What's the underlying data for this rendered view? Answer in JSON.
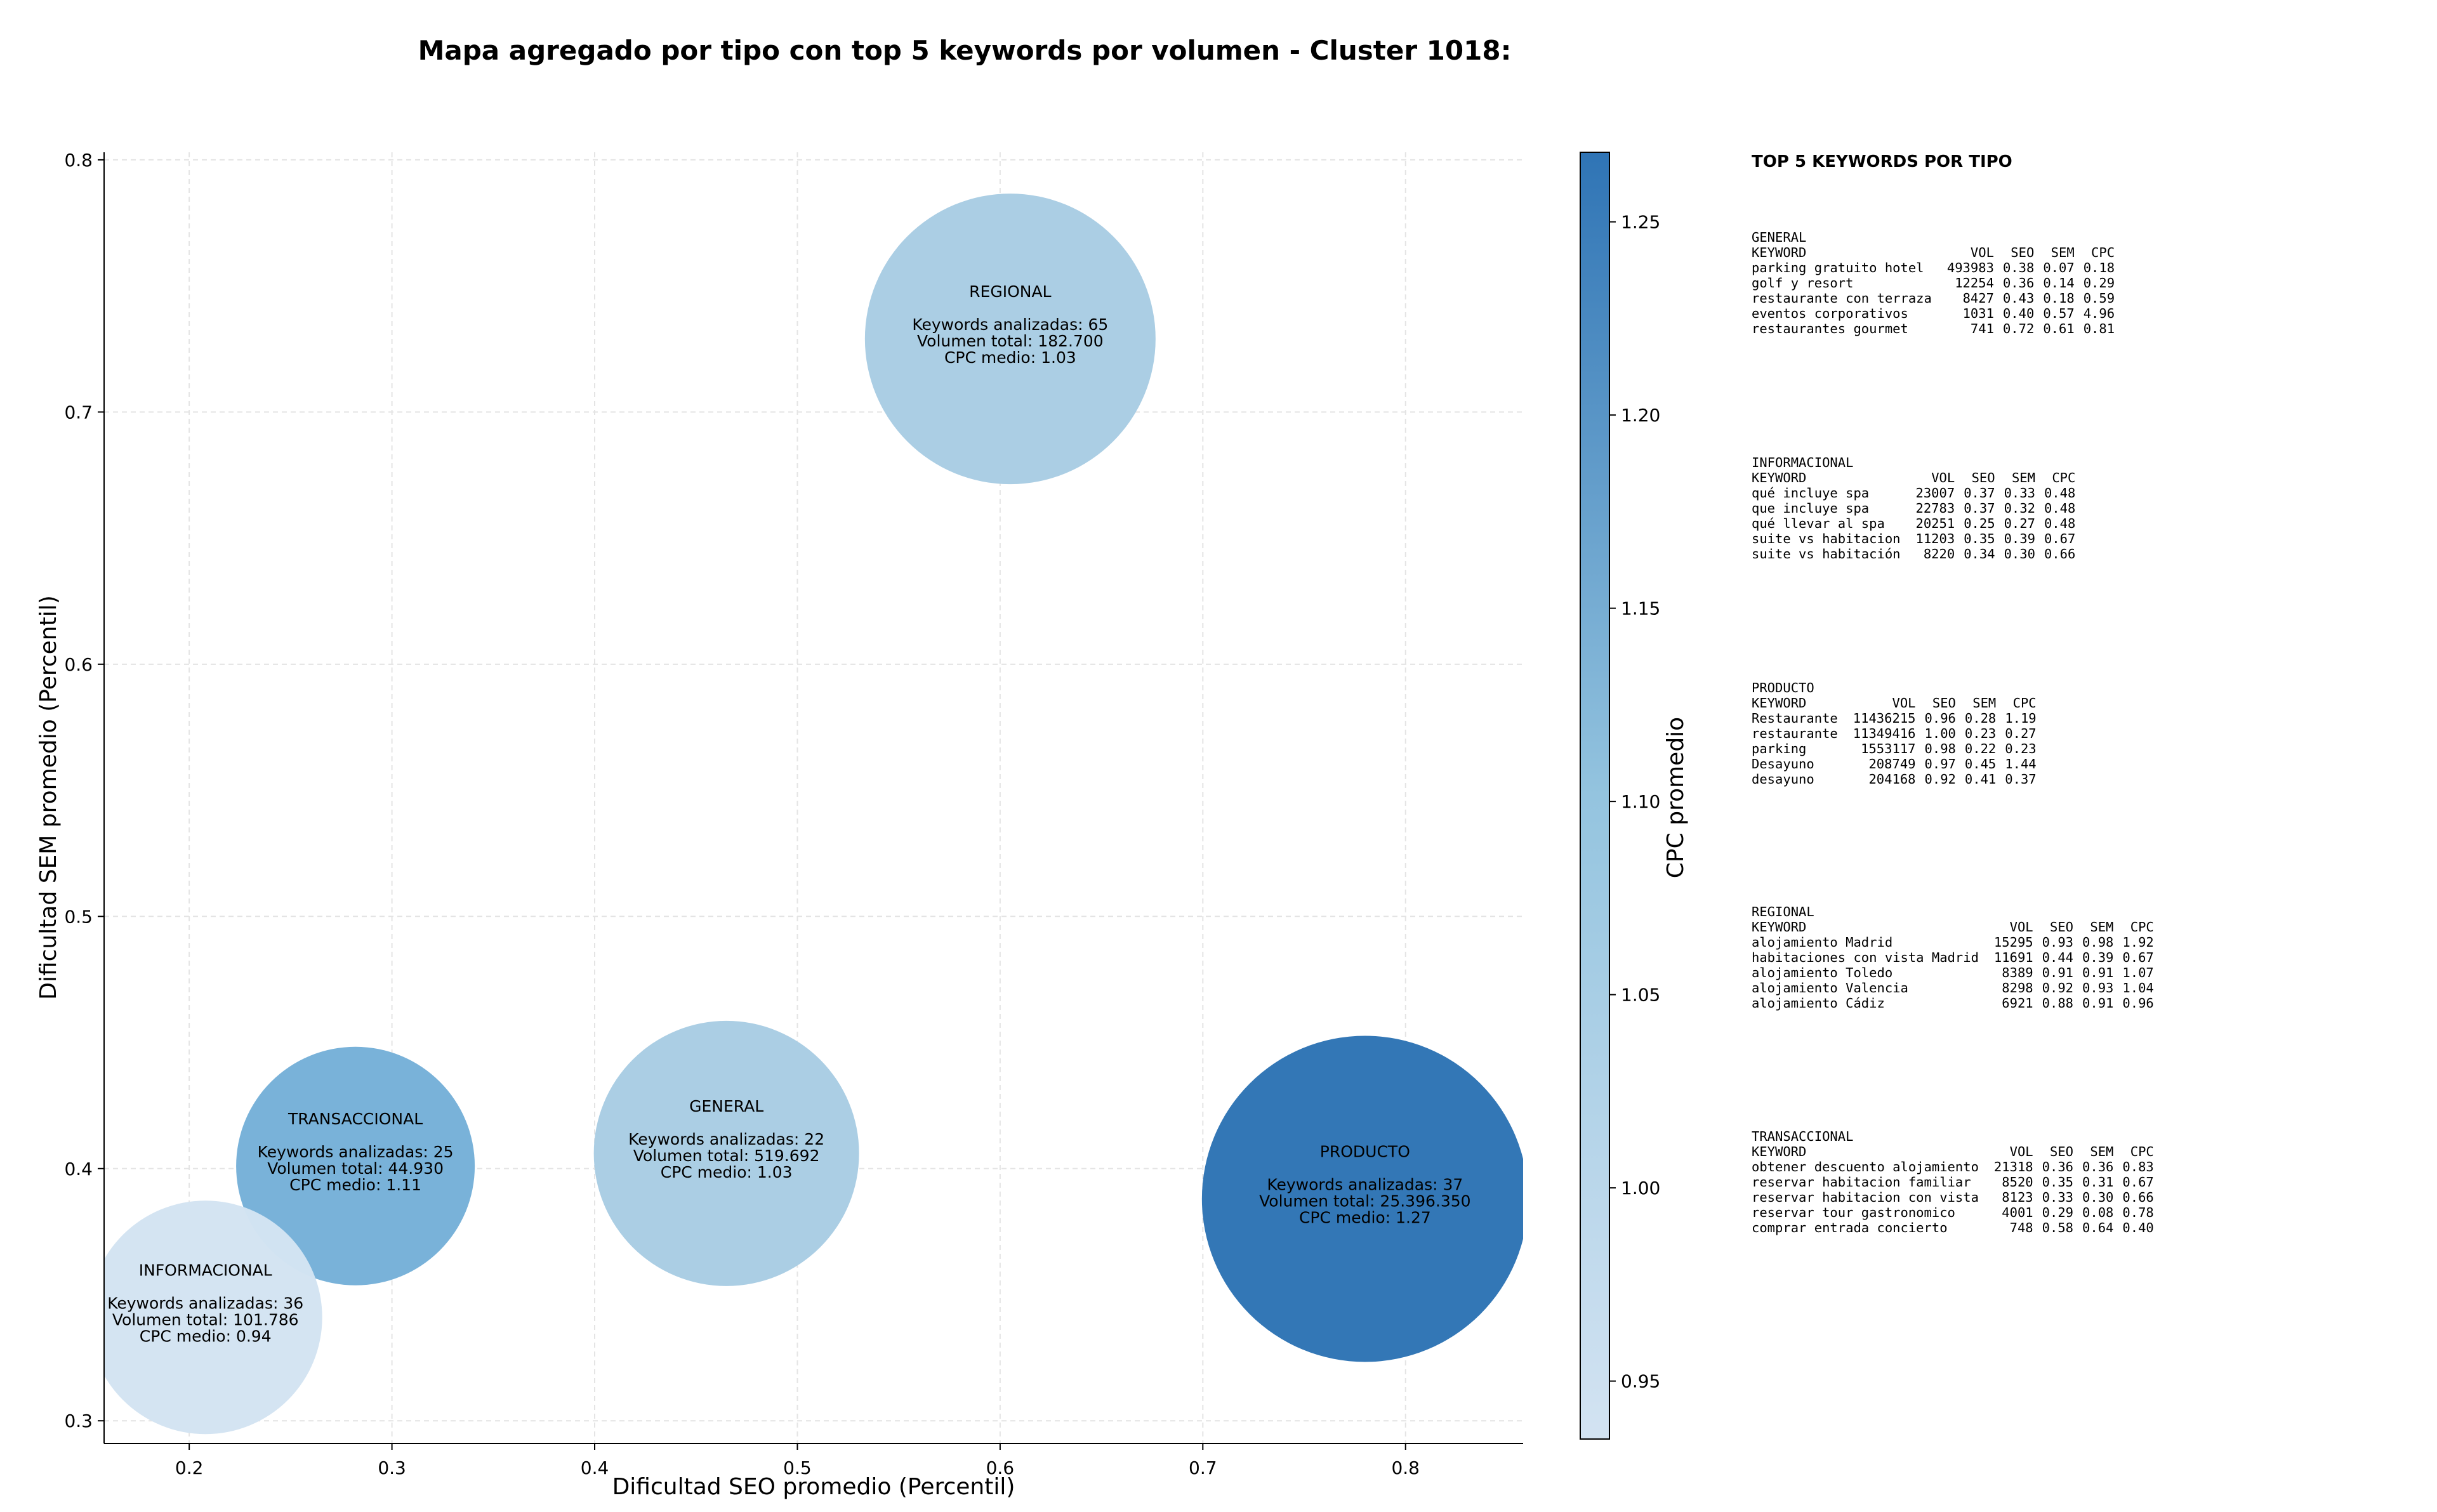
{
  "chart_data": {
    "type": "scatter",
    "title": "Mapa agregado por tipo con top 5 keywords por volumen - Cluster 1018:",
    "xlabel": "Dificultad SEO promedio (Percentil)",
    "ylabel": "Dificultad SEM promedio (Percentil)",
    "xlim": [
      0.158,
      0.858
    ],
    "ylim": [
      0.291,
      0.803
    ],
    "xticks": [
      "0.2",
      "0.3",
      "0.4",
      "0.5",
      "0.6",
      "0.7",
      "0.8"
    ],
    "yticks": [
      "0.3",
      "0.4",
      "0.5",
      "0.6",
      "0.7",
      "0.8"
    ],
    "grid": true,
    "colorbar": {
      "label": "CPC promedio",
      "range": [
        0.935,
        1.268
      ],
      "ticks": [
        "0.95",
        "1.00",
        "1.05",
        "1.10",
        "1.15",
        "1.20",
        "1.25"
      ],
      "color_low": "#c7dbef",
      "color_high": "#3a7cbc"
    },
    "points": [
      {
        "name": "REGIONAL",
        "x": 0.605,
        "y": 0.729,
        "cpc": 1.03,
        "keywords_line": "Keywords analizadas: 65",
        "volume_line": "Volumen total: 182.700",
        "cpc_line": "CPC medio: 1.03",
        "color": "#a9cde3"
      },
      {
        "name": "TRANSACCIONAL",
        "x": 0.282,
        "y": 0.401,
        "cpc": 1.11,
        "keywords_line": "Keywords analizadas: 25",
        "volume_line": "Volumen total: 44.930",
        "cpc_line": "CPC medio: 1.11",
        "color": "#76b0d8"
      },
      {
        "name": "GENERAL",
        "x": 0.465,
        "y": 0.406,
        "cpc": 1.03,
        "keywords_line": "Keywords analizadas: 22",
        "volume_line": "Volumen total: 519.692",
        "cpc_line": "CPC medio: 1.03",
        "color": "#a9cde3"
      },
      {
        "name": "PRODUCTO",
        "x": 0.78,
        "y": 0.388,
        "cpc": 1.27,
        "keywords_line": "Keywords analizadas: 37",
        "volume_line": "Volumen total: 25.396.350",
        "cpc_line": "CPC medio: 1.27",
        "color": "#2f74b5"
      },
      {
        "name": "INFORMACIONAL",
        "x": 0.208,
        "y": 0.341,
        "cpc": 0.94,
        "keywords_line": "Keywords analizadas: 36",
        "volume_line": "Volumen total: 101.786",
        "cpc_line": "CPC medio: 0.94",
        "color": "#d3e3f2"
      }
    ]
  },
  "panel": {
    "title": "TOP 5 KEYWORDS POR TIPO",
    "header": [
      "KEYWORD",
      "VOL",
      "SEO",
      "SEM",
      "CPC"
    ],
    "groups": [
      {
        "name": "GENERAL",
        "rows": [
          [
            "parking gratuito hotel",
            "493983",
            "0.38",
            "0.07",
            "0.18"
          ],
          [
            "golf y resort",
            "12254",
            "0.36",
            "0.14",
            "0.29"
          ],
          [
            "restaurante con terraza",
            "8427",
            "0.43",
            "0.18",
            "0.59"
          ],
          [
            "eventos corporativos",
            "1031",
            "0.40",
            "0.57",
            "4.96"
          ],
          [
            "restaurantes gourmet",
            "741",
            "0.72",
            "0.61",
            "0.81"
          ]
        ]
      },
      {
        "name": "INFORMACIONAL",
        "rows": [
          [
            "qué incluye spa",
            "23007",
            "0.37",
            "0.33",
            "0.48"
          ],
          [
            "que incluye spa",
            "22783",
            "0.37",
            "0.32",
            "0.48"
          ],
          [
            "qué llevar al spa",
            "20251",
            "0.25",
            "0.27",
            "0.48"
          ],
          [
            "suite vs habitacion",
            "11203",
            "0.35",
            "0.39",
            "0.67"
          ],
          [
            "suite vs habitación",
            "8220",
            "0.34",
            "0.30",
            "0.66"
          ]
        ]
      },
      {
        "name": "PRODUCTO",
        "rows": [
          [
            "Restaurante",
            "11436215",
            "0.96",
            "0.28",
            "1.19"
          ],
          [
            "restaurante",
            "11349416",
            "1.00",
            "0.23",
            "0.27"
          ],
          [
            "parking",
            "1553117",
            "0.98",
            "0.22",
            "0.23"
          ],
          [
            "Desayuno",
            "208749",
            "0.97",
            "0.45",
            "1.44"
          ],
          [
            "desayuno",
            "204168",
            "0.92",
            "0.41",
            "0.37"
          ]
        ]
      },
      {
        "name": "REGIONAL",
        "rows": [
          [
            "alojamiento Madrid",
            "15295",
            "0.93",
            "0.98",
            "1.92"
          ],
          [
            "habitaciones con vista Madrid",
            "11691",
            "0.44",
            "0.39",
            "0.67"
          ],
          [
            "alojamiento Toledo",
            "8389",
            "0.91",
            "0.91",
            "1.07"
          ],
          [
            "alojamiento Valencia",
            "8298",
            "0.92",
            "0.93",
            "1.04"
          ],
          [
            "alojamiento Cádiz",
            "6921",
            "0.88",
            "0.91",
            "0.96"
          ]
        ]
      },
      {
        "name": "TRANSACCIONAL",
        "rows": [
          [
            "obtener descuento alojamiento",
            "21318",
            "0.36",
            "0.36",
            "0.83"
          ],
          [
            "reservar habitacion familiar",
            "8520",
            "0.35",
            "0.31",
            "0.67"
          ],
          [
            "reservar habitacion con vista",
            "8123",
            "0.33",
            "0.30",
            "0.66"
          ],
          [
            "reservar tour gastronomico",
            "4001",
            "0.29",
            "0.08",
            "0.78"
          ],
          [
            "comprar entrada concierto",
            "748",
            "0.58",
            "0.64",
            "0.40"
          ]
        ]
      }
    ]
  }
}
